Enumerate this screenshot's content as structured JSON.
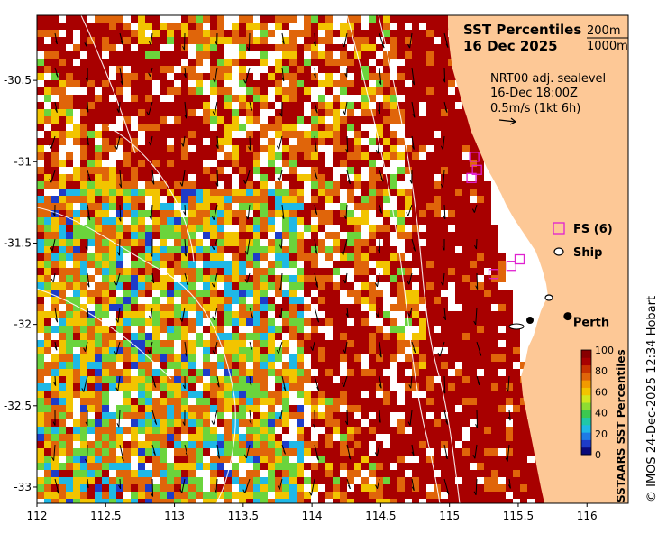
{
  "map": {
    "title_line1": "SST Percentiles",
    "title_line2": "16 Dec 2025",
    "contour_key": [
      "200m",
      "1000m"
    ],
    "current_info": [
      "NRT00 adj. sealevel",
      "16-Dec 18:00Z",
      "0.5m/s (1kt 6h)"
    ],
    "x_ticks": [
      "112",
      "112.5",
      "113",
      "113.5",
      "114",
      "114.5",
      "115",
      "115.5",
      "116"
    ],
    "y_ticks": [
      "-30.5",
      "-31",
      "-31.5",
      "-32",
      "-32.5",
      "-33"
    ],
    "x_tick_values": [
      112,
      112.5,
      113,
      113.5,
      114,
      114.5,
      115,
      115.5,
      116
    ],
    "y_tick_values": [
      -30.5,
      -31,
      -31.5,
      -32,
      -32.5,
      -33
    ],
    "lon_range": [
      112,
      116.3
    ],
    "lat_range": [
      -33.1,
      -30.1
    ],
    "place_label": "Perth",
    "place_lon": 115.86,
    "place_lat": -31.95,
    "colors": {
      "land": "#fdc896",
      "warm": "#a80000",
      "orange": "#e0650a",
      "yellow": "#f2c400",
      "green": "#6bd43c",
      "cyan": "#1fb8e6",
      "blue": "#1e3cc8",
      "marker": "#e020d0"
    }
  },
  "legend": {
    "fs_label": "FS (6)",
    "ship_label": "Ship",
    "fs_sites": [
      {
        "lon": 115.18,
        "lat": -30.97
      },
      {
        "lon": 115.2,
        "lat": -31.05
      },
      {
        "lon": 115.16,
        "lat": -31.1
      },
      {
        "lon": 115.32,
        "lat": -31.69
      },
      {
        "lon": 115.45,
        "lat": -31.64
      },
      {
        "lon": 115.51,
        "lat": -31.6
      }
    ]
  },
  "colorbar": {
    "title": "SSTAARS SST Percentiles",
    "ticks": [
      "100",
      "80",
      "60",
      "40",
      "20",
      "0"
    ],
    "colors": [
      "#0a0a7a",
      "#1e3cc8",
      "#1e7be6",
      "#1fb8e6",
      "#20c8a8",
      "#3cc850",
      "#8edc32",
      "#d2e61e",
      "#f2c400",
      "#f29a00",
      "#e0650a",
      "#c83200",
      "#a80000",
      "#880000"
    ]
  },
  "credit": "© IMOS 24-Dec-2025 12:34 Hobart"
}
